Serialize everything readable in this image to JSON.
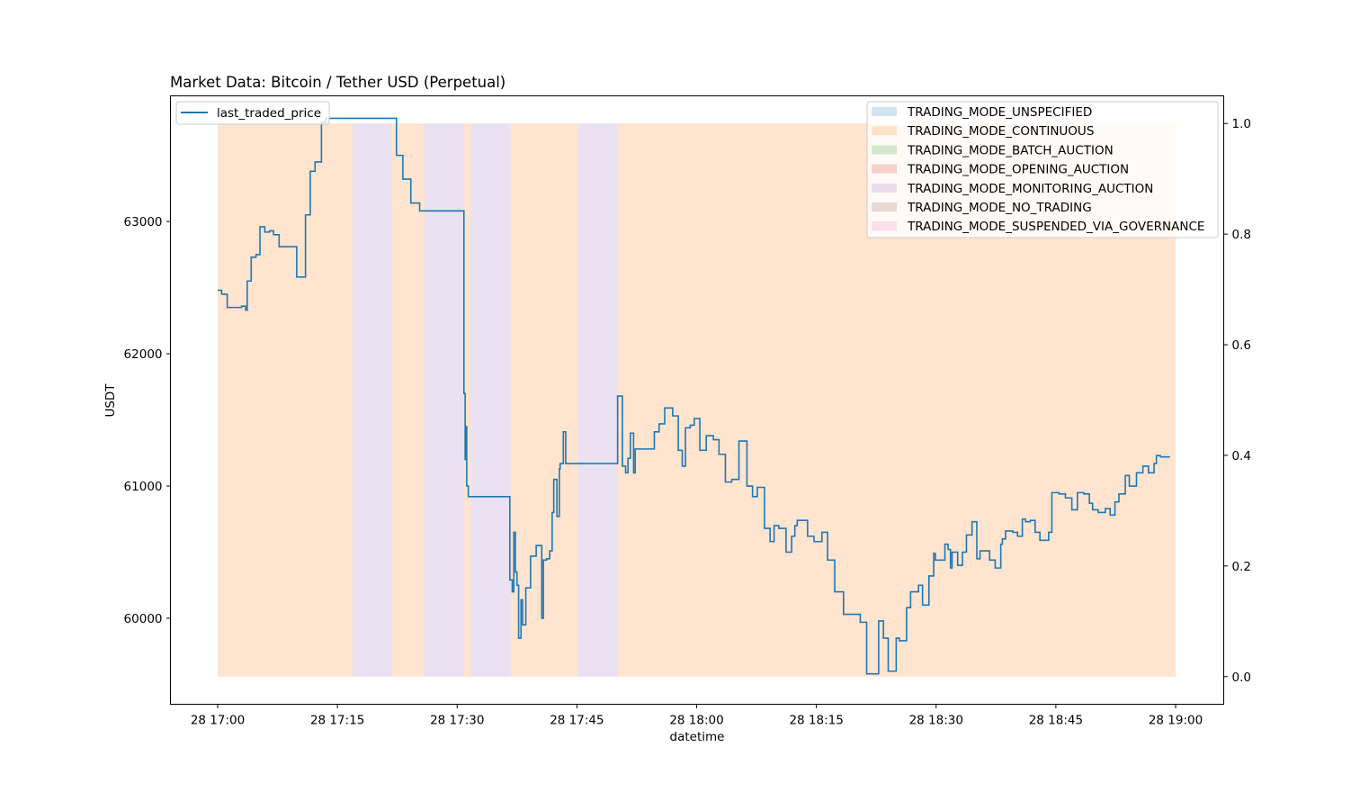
{
  "chart_data": {
    "type": "line",
    "title": "Market Data: Bitcoin / Tether USD (Perpetual)",
    "xlabel": "datetime",
    "ylabel": "USDT",
    "x_range": [
      "28 17:00",
      "28 19:00"
    ],
    "x_ticks": [
      "28 17:00",
      "28 17:15",
      "28 17:30",
      "28 17:45",
      "28 18:00",
      "28 18:15",
      "28 18:30",
      "28 18:45",
      "28 19:00"
    ],
    "ylim": [
      59350,
      63950
    ],
    "y_ticks": [
      60000,
      61000,
      62000,
      63000
    ],
    "y2lim": [
      -0.05,
      1.05
    ],
    "y2_ticks": [
      "0.0",
      "0.2",
      "0.4",
      "0.6",
      "0.8",
      "1.0"
    ],
    "grid": false,
    "line_legend": {
      "placement": "top-left",
      "label": "last_traded_price",
      "color": "#1f77b4"
    },
    "mode_legend": {
      "placement": "top-right",
      "entries": [
        {
          "label": "TRADING_MODE_UNSPECIFIED",
          "color": "#1f77b4"
        },
        {
          "label": "TRADING_MODE_CONTINUOUS",
          "color": "#ff7f0e"
        },
        {
          "label": "TRADING_MODE_BATCH_AUCTION",
          "color": "#2ca02c"
        },
        {
          "label": "TRADING_MODE_OPENING_AUCTION",
          "color": "#d62728"
        },
        {
          "label": "TRADING_MODE_MONITORING_AUCTION",
          "color": "#9467bd"
        },
        {
          "label": "TRADING_MODE_NO_TRADING",
          "color": "#8c564b"
        },
        {
          "label": "TRADING_MODE_SUSPENDED_VIA_GOVERNANCE",
          "color": "#e377c2"
        }
      ]
    },
    "trading_mode_spans": [
      {
        "mode": "TRADING_MODE_CONTINUOUS",
        "start_min": 0.0,
        "end_min": 16.9
      },
      {
        "mode": "TRADING_MODE_MONITORING_AUCTION",
        "start_min": 16.9,
        "end_min": 21.8
      },
      {
        "mode": "TRADING_MODE_CONTINUOUS",
        "start_min": 21.8,
        "end_min": 25.9
      },
      {
        "mode": "TRADING_MODE_MONITORING_AUCTION",
        "start_min": 25.9,
        "end_min": 30.9
      },
      {
        "mode": "TRADING_MODE_CONTINUOUS",
        "start_min": 30.9,
        "end_min": 31.7
      },
      {
        "mode": "TRADING_MODE_MONITORING_AUCTION",
        "start_min": 31.7,
        "end_min": 36.7
      },
      {
        "mode": "TRADING_MODE_CONTINUOUS",
        "start_min": 36.7,
        "end_min": 45.1
      },
      {
        "mode": "TRADING_MODE_MONITORING_AUCTION",
        "start_min": 45.1,
        "end_min": 50.1
      },
      {
        "mode": "TRADING_MODE_CONTINUOUS",
        "start_min": 50.1,
        "end_min": 120.0
      }
    ],
    "series": [
      {
        "name": "last_traded_price",
        "x_min": [
          0.0,
          0.5,
          1.2,
          3.0,
          3.5,
          3.7,
          4.2,
          4.8,
          5.3,
          5.9,
          6.5,
          7.0,
          7.7,
          9.9,
          11.0,
          11.6,
          12.2,
          13.0,
          13.5,
          14.3,
          15.0,
          16.5,
          17.0,
          22.4,
          23.2,
          24.2,
          25.3,
          30.8,
          30.85,
          31.0,
          31.1,
          31.2,
          31.4,
          31.7,
          36.6,
          36.9,
          37.1,
          37.3,
          37.5,
          37.7,
          38.0,
          38.2,
          38.6,
          39.2,
          39.9,
          40.6,
          40.8,
          41.2,
          41.6,
          41.9,
          42.1,
          42.5,
          42.8,
          42.9,
          43.3,
          43.6,
          50.1,
          50.7,
          51.1,
          51.4,
          51.7,
          52.1,
          52.3,
          53.0,
          54.7,
          55.3,
          56.0,
          57.0,
          57.7,
          58.2,
          58.6,
          59.2,
          59.7,
          60.4,
          61.2,
          62.1,
          62.8,
          63.6,
          64.4,
          65.3,
          66.3,
          67.0,
          67.6,
          68.5,
          69.2,
          69.7,
          70.3,
          71.2,
          71.9,
          72.3,
          72.6,
          73.1,
          73.9,
          74.7,
          75.7,
          76.4,
          77.3,
          78.0,
          78.4,
          80.5,
          81.3,
          81.8,
          82.8,
          83.4,
          84.0,
          85.0,
          85.4,
          86.3,
          86.8,
          87.8,
          88.3,
          89.1,
          89.7,
          89.9,
          90.5,
          91.1,
          91.5,
          91.8,
          92.0,
          92.7,
          93.3,
          93.8,
          94.5,
          95.1,
          95.5,
          96.7,
          97.4,
          98.1,
          98.3,
          98.7,
          99.6,
          100.2,
          100.8,
          101.2,
          101.8,
          102.4,
          103.0,
          104.1,
          104.5,
          105.4,
          106.2,
          107.0,
          107.7,
          108.5,
          109.2,
          109.6,
          110.3,
          111.2,
          111.8,
          112.4,
          112.9,
          113.7,
          114.2,
          115.1,
          115.9,
          116.6,
          117.3,
          117.6,
          118.1,
          118.8,
          119.3,
          120.0
        ],
        "y": [
          62480,
          62450,
          62350,
          62360,
          62330,
          62550,
          62730,
          62750,
          62960,
          62920,
          62930,
          62900,
          62810,
          62580,
          63050,
          63380,
          63450,
          63750,
          63780,
          63780,
          63780,
          63780,
          63780,
          63500,
          63320,
          63140,
          63080,
          63080,
          61700,
          61200,
          61450,
          61000,
          60920,
          60920,
          60290,
          60200,
          60650,
          60350,
          60250,
          59850,
          60140,
          59950,
          60230,
          60470,
          60550,
          60000,
          60440,
          60450,
          60510,
          60800,
          61050,
          60770,
          61130,
          61170,
          61410,
          61170,
          61680,
          61150,
          61100,
          61210,
          61400,
          61100,
          61280,
          61280,
          61410,
          61470,
          61590,
          61530,
          61270,
          61150,
          61440,
          61460,
          61510,
          61270,
          61380,
          61350,
          61240,
          61030,
          61050,
          61340,
          61000,
          60920,
          60990,
          60680,
          60580,
          60700,
          60680,
          60500,
          60620,
          60700,
          60740,
          60740,
          60620,
          60580,
          60650,
          60440,
          60200,
          60200,
          60030,
          59970,
          59580,
          59580,
          59980,
          59850,
          59600,
          59850,
          59830,
          60080,
          60200,
          60250,
          60100,
          60320,
          60490,
          60440,
          60440,
          60560,
          60520,
          60380,
          60500,
          60400,
          60500,
          60630,
          60730,
          60450,
          60510,
          60440,
          60380,
          60560,
          60600,
          60660,
          60650,
          60620,
          60750,
          60730,
          60740,
          60650,
          60590,
          60650,
          60950,
          60940,
          60910,
          60820,
          60950,
          60940,
          60870,
          60820,
          60800,
          60830,
          60780,
          60880,
          60940,
          61080,
          61000,
          61100,
          61150,
          61100,
          61170,
          61230,
          61220,
          61220
        ]
      }
    ]
  }
}
